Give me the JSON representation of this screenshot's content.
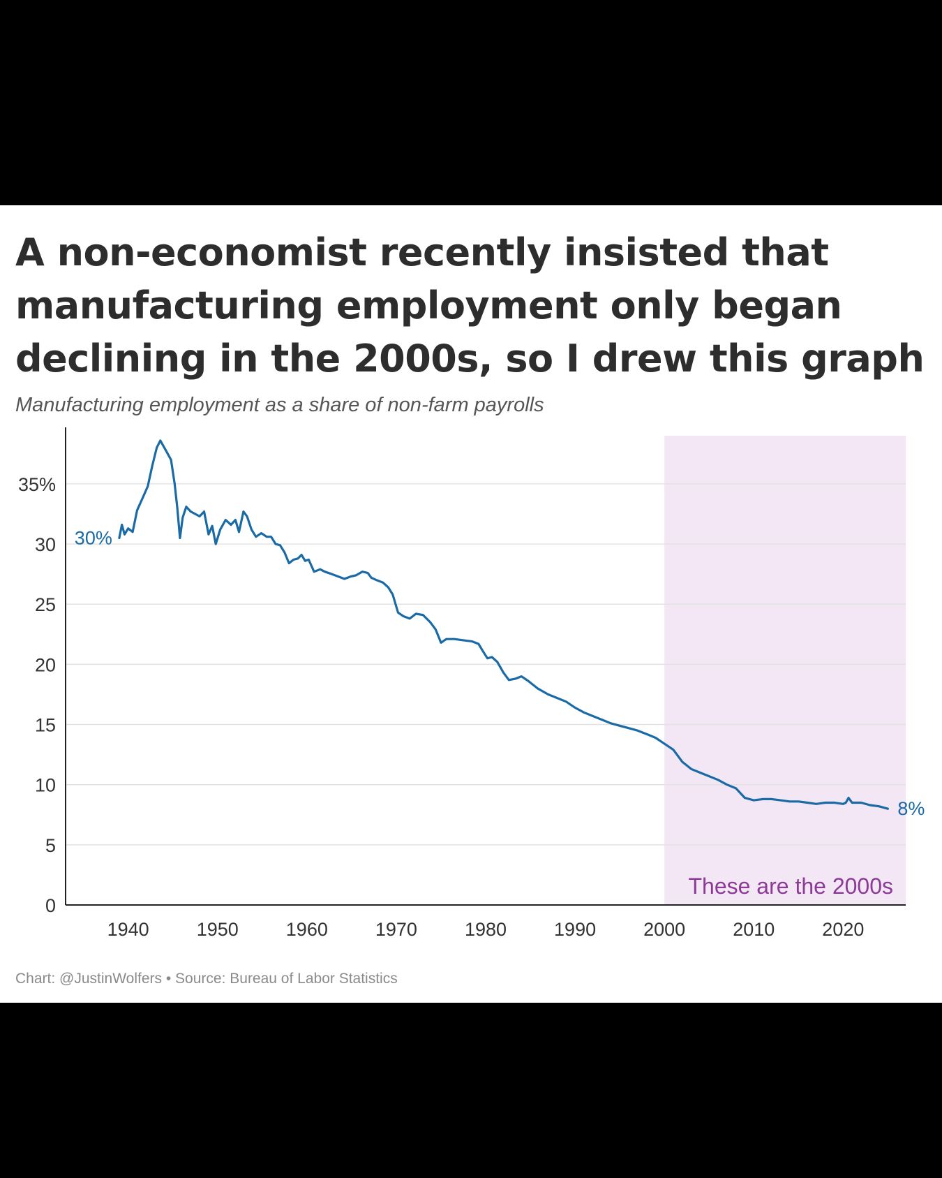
{
  "title": "A non-economist recently insisted that manufacturing employment only began declining in the 2000s, so I drew this graph",
  "subtitle": "Manufacturing employment as a share of non-farm payrolls",
  "footer": {
    "credit": "Chart: @JustinWolfers",
    "separator": "•",
    "source": "Source: Bureau of Labor Statistics"
  },
  "colors": {
    "line": "#1a6aa6",
    "shade": "#f3e6f5",
    "annotation": "#8b3a96",
    "grid": "#e2e2e2",
    "axis": "#222222"
  },
  "chart_data": {
    "type": "line",
    "title": "",
    "xlabel": "",
    "ylabel": "",
    "xlim": [
      1933,
      2027
    ],
    "ylim": [
      0,
      39
    ],
    "grid": "horizontal",
    "x_ticks": [
      {
        "value": 1940,
        "label": "1940"
      },
      {
        "value": 1950,
        "label": "1950"
      },
      {
        "value": 1960,
        "label": "1960"
      },
      {
        "value": 1970,
        "label": "1970"
      },
      {
        "value": 1980,
        "label": "1980"
      },
      {
        "value": 1990,
        "label": "1990"
      },
      {
        "value": 2000,
        "label": "2000"
      },
      {
        "value": 2010,
        "label": "2010"
      },
      {
        "value": 2020,
        "label": "2020"
      }
    ],
    "y_ticks": [
      {
        "value": 0,
        "label": "0"
      },
      {
        "value": 5,
        "label": "5"
      },
      {
        "value": 10,
        "label": "10"
      },
      {
        "value": 15,
        "label": "15"
      },
      {
        "value": 20,
        "label": "20"
      },
      {
        "value": 25,
        "label": "25"
      },
      {
        "value": 30,
        "label": "30"
      },
      {
        "value": 35,
        "label": "35%"
      }
    ],
    "shaded_region": {
      "x_start": 2000,
      "x_end": 2027,
      "label": "These are the 2000s"
    },
    "annotations": [
      {
        "text": "30%",
        "x": 1939,
        "y": 30.5,
        "anchor": "start-label"
      },
      {
        "text": "8%",
        "x": 2025,
        "y": 8.0,
        "anchor": "end-label"
      }
    ],
    "series": [
      {
        "name": "",
        "points": [
          [
            1939.0,
            30.5
          ],
          [
            1939.3,
            31.6
          ],
          [
            1939.6,
            30.8
          ],
          [
            1940.0,
            31.3
          ],
          [
            1940.5,
            31.0
          ],
          [
            1941.0,
            32.8
          ],
          [
            1941.6,
            33.8
          ],
          [
            1942.2,
            34.8
          ],
          [
            1942.7,
            36.5
          ],
          [
            1943.2,
            38.0
          ],
          [
            1943.6,
            38.6
          ],
          [
            1944.2,
            37.8
          ],
          [
            1944.8,
            37.0
          ],
          [
            1945.2,
            35.0
          ],
          [
            1945.5,
            33.0
          ],
          [
            1945.8,
            30.5
          ],
          [
            1946.1,
            32.2
          ],
          [
            1946.5,
            33.1
          ],
          [
            1947.0,
            32.7
          ],
          [
            1947.5,
            32.5
          ],
          [
            1948.0,
            32.3
          ],
          [
            1948.5,
            32.7
          ],
          [
            1949.0,
            30.8
          ],
          [
            1949.4,
            31.5
          ],
          [
            1949.8,
            30.0
          ],
          [
            1950.3,
            31.2
          ],
          [
            1950.9,
            32.0
          ],
          [
            1951.5,
            31.6
          ],
          [
            1952.0,
            32.0
          ],
          [
            1952.4,
            31.0
          ],
          [
            1952.9,
            32.7
          ],
          [
            1953.3,
            32.3
          ],
          [
            1953.8,
            31.2
          ],
          [
            1954.3,
            30.6
          ],
          [
            1954.9,
            30.9
          ],
          [
            1955.5,
            30.6
          ],
          [
            1956.0,
            30.6
          ],
          [
            1956.5,
            30.0
          ],
          [
            1957.0,
            29.9
          ],
          [
            1957.5,
            29.3
          ],
          [
            1958.0,
            28.4
          ],
          [
            1958.5,
            28.7
          ],
          [
            1959.0,
            28.8
          ],
          [
            1959.4,
            29.1
          ],
          [
            1959.8,
            28.6
          ],
          [
            1960.2,
            28.7
          ],
          [
            1960.8,
            27.7
          ],
          [
            1961.5,
            27.9
          ],
          [
            1962.0,
            27.7
          ],
          [
            1962.8,
            27.5
          ],
          [
            1963.5,
            27.3
          ],
          [
            1964.2,
            27.1
          ],
          [
            1964.9,
            27.3
          ],
          [
            1965.5,
            27.4
          ],
          [
            1966.2,
            27.7
          ],
          [
            1966.8,
            27.6
          ],
          [
            1967.2,
            27.2
          ],
          [
            1967.8,
            27.0
          ],
          [
            1968.5,
            26.8
          ],
          [
            1969.1,
            26.4
          ],
          [
            1969.6,
            25.8
          ],
          [
            1970.2,
            24.3
          ],
          [
            1970.8,
            24.0
          ],
          [
            1971.5,
            23.8
          ],
          [
            1972.2,
            24.2
          ],
          [
            1973.0,
            24.1
          ],
          [
            1973.8,
            23.5
          ],
          [
            1974.4,
            22.9
          ],
          [
            1975.0,
            21.8
          ],
          [
            1975.6,
            22.1
          ],
          [
            1976.5,
            22.1
          ],
          [
            1977.5,
            22.0
          ],
          [
            1978.5,
            21.9
          ],
          [
            1979.2,
            21.7
          ],
          [
            1979.6,
            21.2
          ],
          [
            1980.2,
            20.5
          ],
          [
            1980.7,
            20.6
          ],
          [
            1981.3,
            20.2
          ],
          [
            1982.0,
            19.3
          ],
          [
            1982.6,
            18.7
          ],
          [
            1983.3,
            18.8
          ],
          [
            1984.0,
            19.0
          ],
          [
            1984.8,
            18.6
          ],
          [
            1985.8,
            18.0
          ],
          [
            1987.0,
            17.5
          ],
          [
            1988.0,
            17.2
          ],
          [
            1989.0,
            16.9
          ],
          [
            1990.0,
            16.4
          ],
          [
            1991.0,
            16.0
          ],
          [
            1992.0,
            15.7
          ],
          [
            1993.0,
            15.4
          ],
          [
            1994.0,
            15.1
          ],
          [
            1995.0,
            14.9
          ],
          [
            1996.0,
            14.7
          ],
          [
            1997.0,
            14.5
          ],
          [
            1998.0,
            14.2
          ],
          [
            1999.0,
            13.9
          ],
          [
            2000.0,
            13.4
          ],
          [
            2001.0,
            12.9
          ],
          [
            2002.0,
            11.9
          ],
          [
            2003.0,
            11.3
          ],
          [
            2004.0,
            11.0
          ],
          [
            2005.0,
            10.7
          ],
          [
            2006.0,
            10.4
          ],
          [
            2007.0,
            10.0
          ],
          [
            2008.0,
            9.7
          ],
          [
            2009.0,
            8.9
          ],
          [
            2010.0,
            8.7
          ],
          [
            2011.0,
            8.8
          ],
          [
            2012.0,
            8.8
          ],
          [
            2013.0,
            8.7
          ],
          [
            2014.0,
            8.6
          ],
          [
            2015.0,
            8.6
          ],
          [
            2016.0,
            8.5
          ],
          [
            2017.0,
            8.4
          ],
          [
            2018.0,
            8.5
          ],
          [
            2019.0,
            8.5
          ],
          [
            2020.0,
            8.4
          ],
          [
            2020.3,
            8.5
          ],
          [
            2020.6,
            8.9
          ],
          [
            2021.0,
            8.5
          ],
          [
            2022.0,
            8.5
          ],
          [
            2023.0,
            8.3
          ],
          [
            2024.0,
            8.2
          ],
          [
            2025.0,
            8.0
          ]
        ]
      }
    ]
  }
}
